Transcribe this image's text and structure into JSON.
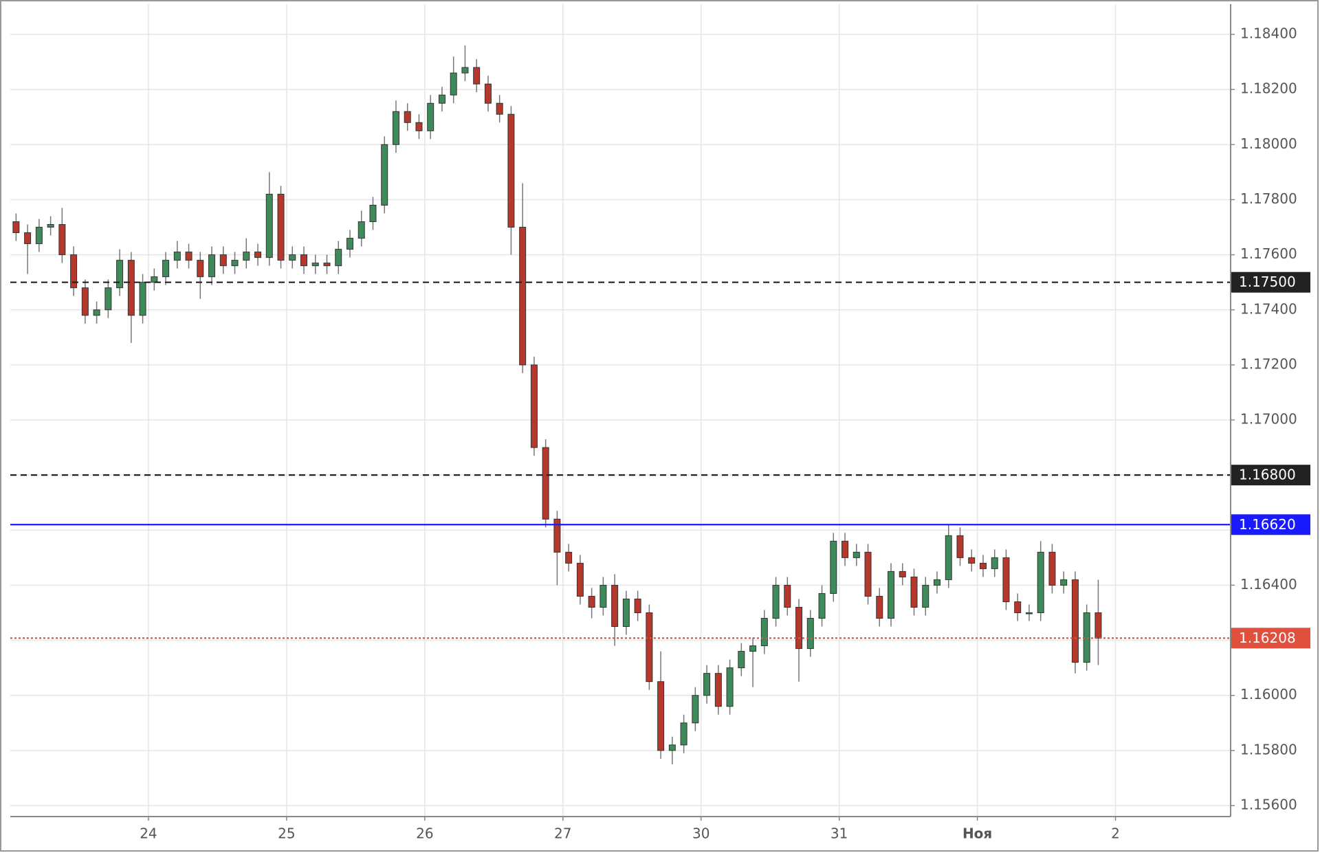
{
  "chart_data": {
    "type": "candlestick",
    "x": [
      0,
      1,
      2,
      3,
      4,
      5,
      6,
      7,
      8,
      9,
      10,
      11,
      12,
      13,
      14,
      15,
      16,
      17,
      18,
      19,
      20,
      21,
      22,
      23,
      24,
      25,
      26,
      27,
      28,
      29,
      30,
      31,
      32,
      33,
      34,
      35,
      36,
      37,
      38,
      39,
      40,
      41,
      42,
      43,
      44,
      45,
      46,
      47,
      48,
      49,
      50,
      51,
      52,
      53,
      54,
      55,
      56,
      57,
      58,
      59,
      60,
      61,
      62,
      63,
      64,
      65,
      66,
      67,
      68,
      69,
      70,
      71,
      72,
      73,
      74,
      75,
      76,
      77,
      78,
      79,
      80,
      81,
      82,
      83,
      84,
      85,
      86,
      87,
      88,
      89,
      90,
      91,
      92,
      93,
      94
    ],
    "open": [
      1.1772,
      1.1768,
      1.1764,
      1.177,
      1.1771,
      1.176,
      1.1748,
      1.1738,
      1.174,
      1.1748,
      1.1758,
      1.1738,
      1.175,
      1.1752,
      1.1758,
      1.1761,
      1.1758,
      1.1752,
      1.176,
      1.1756,
      1.1758,
      1.1761,
      1.1759,
      1.1782,
      1.1758,
      1.176,
      1.1756,
      1.1757,
      1.1756,
      1.1762,
      1.1766,
      1.1772,
      1.1778,
      1.18,
      1.1812,
      1.1808,
      1.1805,
      1.1815,
      1.1818,
      1.1826,
      1.1828,
      1.1822,
      1.1815,
      1.1811,
      1.177,
      1.172,
      1.169,
      1.1664,
      1.1652,
      1.1648,
      1.1636,
      1.1632,
      1.164,
      1.1625,
      1.1635,
      1.163,
      1.1605,
      1.158,
      1.1582,
      1.159,
      1.16,
      1.1608,
      1.1596,
      1.161,
      1.1616,
      1.1618,
      1.1628,
      1.164,
      1.1632,
      1.1617,
      1.1628,
      1.1637,
      1.1656,
      1.165,
      1.1652,
      1.1636,
      1.1628,
      1.1645,
      1.1643,
      1.1632,
      1.164,
      1.1642,
      1.1658,
      1.165,
      1.1648,
      1.1646,
      1.165,
      1.1634,
      1.163,
      1.163,
      1.1652,
      1.164,
      1.1642,
      1.1612,
      1.163
    ],
    "high": [
      1.1775,
      1.1771,
      1.1773,
      1.1774,
      1.1777,
      1.1763,
      1.1751,
      1.1743,
      1.1751,
      1.1762,
      1.1761,
      1.1753,
      1.1755,
      1.1761,
      1.1765,
      1.1764,
      1.1761,
      1.1763,
      1.1763,
      1.1761,
      1.1766,
      1.1764,
      1.179,
      1.1785,
      1.1763,
      1.1763,
      1.176,
      1.176,
      1.1765,
      1.1769,
      1.1776,
      1.1781,
      1.1803,
      1.1816,
      1.1815,
      1.1811,
      1.1818,
      1.1821,
      1.1832,
      1.1836,
      1.1831,
      1.1825,
      1.1818,
      1.1814,
      1.1786,
      1.1723,
      1.1693,
      1.1667,
      1.1655,
      1.1651,
      1.1639,
      1.1643,
      1.1644,
      1.1638,
      1.1638,
      1.1633,
      1.1616,
      1.1585,
      1.1593,
      1.1603,
      1.1611,
      1.1611,
      1.1613,
      1.1619,
      1.1621,
      1.1631,
      1.1643,
      1.1643,
      1.1635,
      1.1631,
      1.164,
      1.1659,
      1.1659,
      1.1655,
      1.1655,
      1.1639,
      1.1648,
      1.1648,
      1.1646,
      1.1643,
      1.1645,
      1.1662,
      1.1661,
      1.1653,
      1.1651,
      1.1653,
      1.1653,
      1.1637,
      1.1633,
      1.1656,
      1.1655,
      1.1645,
      1.1645,
      1.1633,
      1.1642
    ],
    "low": [
      1.1765,
      1.1753,
      1.1761,
      1.1767,
      1.1757,
      1.1745,
      1.1735,
      1.1735,
      1.1737,
      1.1745,
      1.1728,
      1.1735,
      1.1747,
      1.1749,
      1.1755,
      1.1755,
      1.1744,
      1.1749,
      1.1753,
      1.1753,
      1.1755,
      1.1756,
      1.1756,
      1.1755,
      1.1755,
      1.1753,
      1.1753,
      1.1753,
      1.1753,
      1.1759,
      1.1763,
      1.1769,
      1.1775,
      1.1797,
      1.1805,
      1.1802,
      1.1802,
      1.1812,
      1.1815,
      1.1823,
      1.1819,
      1.1812,
      1.1808,
      1.176,
      1.1717,
      1.1687,
      1.1661,
      1.164,
      1.1645,
      1.1633,
      1.1628,
      1.1629,
      1.1618,
      1.1622,
      1.1627,
      1.1602,
      1.1577,
      1.1575,
      1.1579,
      1.1587,
      1.1597,
      1.1593,
      1.1593,
      1.1607,
      1.1603,
      1.1615,
      1.1625,
      1.1629,
      1.1605,
      1.1614,
      1.1625,
      1.1634,
      1.1647,
      1.1647,
      1.1633,
      1.1625,
      1.1625,
      1.164,
      1.1629,
      1.1629,
      1.1637,
      1.1639,
      1.1647,
      1.1645,
      1.1643,
      1.1643,
      1.1631,
      1.1627,
      1.1627,
      1.1627,
      1.1637,
      1.1637,
      1.1608,
      1.1609,
      1.1611
    ],
    "close": [
      1.1768,
      1.1764,
      1.177,
      1.1771,
      1.176,
      1.1748,
      1.1738,
      1.174,
      1.1748,
      1.1758,
      1.1738,
      1.175,
      1.1752,
      1.1758,
      1.1761,
      1.1758,
      1.1752,
      1.176,
      1.1756,
      1.1758,
      1.1761,
      1.1759,
      1.1782,
      1.1758,
      1.176,
      1.1756,
      1.1757,
      1.1756,
      1.1762,
      1.1766,
      1.1772,
      1.1778,
      1.18,
      1.1812,
      1.1808,
      1.1805,
      1.1815,
      1.1818,
      1.1826,
      1.1828,
      1.1822,
      1.1815,
      1.1811,
      1.177,
      1.172,
      1.169,
      1.1664,
      1.1652,
      1.1648,
      1.1636,
      1.1632,
      1.164,
      1.1625,
      1.1635,
      1.163,
      1.1605,
      1.158,
      1.1582,
      1.159,
      1.16,
      1.1608,
      1.1596,
      1.161,
      1.1616,
      1.1618,
      1.1628,
      1.164,
      1.1632,
      1.1617,
      1.1628,
      1.1637,
      1.1656,
      1.165,
      1.1652,
      1.1636,
      1.1628,
      1.1645,
      1.1643,
      1.1632,
      1.164,
      1.1642,
      1.1658,
      1.165,
      1.1648,
      1.1646,
      1.165,
      1.1634,
      1.163,
      1.163,
      1.1652,
      1.164,
      1.1642,
      1.1612,
      1.163,
      1.16208
    ],
    "up_color": "#3f8a5a",
    "down_color": "#b4382b",
    "xlim": [
      -0.5,
      105.5
    ],
    "ylim": [
      1.1556,
      1.1851
    ],
    "xticks": [
      {
        "value": 11.5,
        "label": "24"
      },
      {
        "value": 23.5,
        "label": "25"
      },
      {
        "value": 35.5,
        "label": "26"
      },
      {
        "value": 47.5,
        "label": "27"
      },
      {
        "value": 59.5,
        "label": "30"
      },
      {
        "value": 71.5,
        "label": "31"
      },
      {
        "value": 83.5,
        "label": "Ноя"
      },
      {
        "value": 95.5,
        "label": "2"
      }
    ],
    "yticks": [
      {
        "value": 1.156,
        "label": "1.15600"
      },
      {
        "value": 1.158,
        "label": "1.15800"
      },
      {
        "value": 1.16,
        "label": "1.16000"
      },
      {
        "value": 1.162,
        "label": "1.16200"
      },
      {
        "value": 1.164,
        "label": "1.16400"
      },
      {
        "value": 1.166,
        "label": "1.16600"
      },
      {
        "value": 1.168,
        "label": "1.16800"
      },
      {
        "value": 1.17,
        "label": "1.17000"
      },
      {
        "value": 1.172,
        "label": "1.17200"
      },
      {
        "value": 1.174,
        "label": "1.17400"
      },
      {
        "value": 1.176,
        "label": "1.17600"
      },
      {
        "value": 1.178,
        "label": "1.17800"
      },
      {
        "value": 1.18,
        "label": "1.18000"
      },
      {
        "value": 1.182,
        "label": "1.18200"
      },
      {
        "value": 1.184,
        "label": "1.18400"
      }
    ],
    "grid": true,
    "lines": [
      {
        "value": 1.175,
        "label": "1.17500",
        "color": "#222222",
        "style": "dashed"
      },
      {
        "value": 1.168,
        "label": "1.16800",
        "color": "#222222",
        "style": "dashed"
      },
      {
        "value": 1.1662,
        "label": "1.16620",
        "color": "#1a1aff",
        "style": "solid"
      },
      {
        "value": 1.16208,
        "label": "1.16208",
        "color": "#e0503c",
        "style": "dotted"
      }
    ]
  }
}
